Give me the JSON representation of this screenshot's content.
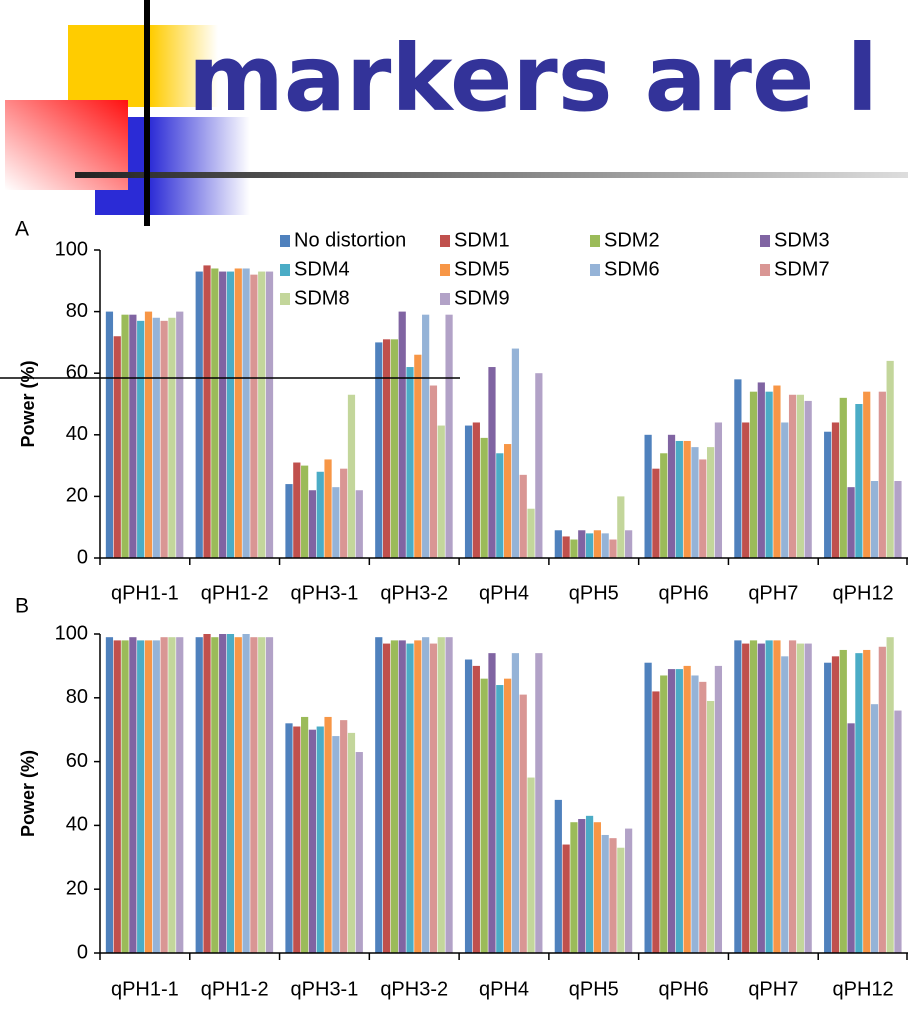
{
  "slide_title": "markers are l",
  "chart_data": [
    {
      "type": "bar",
      "panel_label": "A",
      "y_label": "Power (%)",
      "legend": "top",
      "categories": [
        "qPH1-1",
        "qPH1-2",
        "qPH3-1",
        "qPH3-2",
        "qPH4",
        "qPH5",
        "qPH6",
        "qPH7",
        "qPH12"
      ],
      "ylim": [
        0,
        100
      ],
      "yticks": [
        0,
        20,
        40,
        60,
        80,
        100
      ],
      "series": [
        {
          "name": "No distortion",
          "color": "#4f81bd",
          "values": [
            80,
            93,
            24,
            70,
            43,
            9,
            40,
            58,
            41
          ]
        },
        {
          "name": "SDM1",
          "color": "#c0504d",
          "values": [
            72,
            95,
            31,
            71,
            44,
            7,
            29,
            44,
            44
          ]
        },
        {
          "name": "SDM2",
          "color": "#9bbb59",
          "values": [
            79,
            94,
            30,
            71,
            39,
            6,
            34,
            54,
            52
          ]
        },
        {
          "name": "SDM3",
          "color": "#8064a2",
          "values": [
            79,
            93,
            22,
            80,
            62,
            9,
            40,
            57,
            23
          ]
        },
        {
          "name": "SDM4",
          "color": "#4bacc6",
          "values": [
            77,
            93,
            28,
            62,
            34,
            8,
            38,
            54,
            50
          ]
        },
        {
          "name": "SDM5",
          "color": "#f79646",
          "values": [
            80,
            94,
            32,
            66,
            37,
            9,
            38,
            56,
            54
          ]
        },
        {
          "name": "SDM6",
          "color": "#95b3d7",
          "values": [
            78,
            94,
            23,
            79,
            68,
            8,
            36,
            44,
            25
          ]
        },
        {
          "name": "SDM7",
          "color": "#d99694",
          "values": [
            77,
            92,
            29,
            56,
            27,
            6,
            32,
            53,
            54
          ]
        },
        {
          "name": "SDM8",
          "color": "#c3d69b",
          "values": [
            78,
            93,
            53,
            43,
            16,
            20,
            36,
            53,
            64
          ]
        },
        {
          "name": "SDM9",
          "color": "#b2a2c7",
          "values": [
            80,
            93,
            22,
            79,
            60,
            9,
            44,
            51,
            25
          ]
        }
      ]
    },
    {
      "type": "bar",
      "panel_label": "B",
      "y_label": "Power (%)",
      "categories": [
        "qPH1-1",
        "qPH1-2",
        "qPH3-1",
        "qPH3-2",
        "qPH4",
        "qPH5",
        "qPH6",
        "qPH7",
        "qPH12"
      ],
      "ylim": [
        0,
        100
      ],
      "yticks": [
        0,
        20,
        40,
        60,
        80,
        100
      ],
      "series": [
        {
          "color": "#4f81bd",
          "values": [
            99,
            99,
            72,
            99,
            92,
            48,
            91,
            98,
            91
          ]
        },
        {
          "color": "#c0504d",
          "values": [
            98,
            100,
            71,
            97,
            90,
            34,
            82,
            97,
            93
          ]
        },
        {
          "color": "#9bbb59",
          "values": [
            98,
            99,
            74,
            98,
            86,
            41,
            87,
            98,
            95
          ]
        },
        {
          "color": "#8064a2",
          "values": [
            99,
            100,
            70,
            98,
            94,
            42,
            89,
            97,
            72
          ]
        },
        {
          "color": "#4bacc6",
          "values": [
            98,
            100,
            71,
            97,
            84,
            43,
            89,
            98,
            94
          ]
        },
        {
          "color": "#f79646",
          "values": [
            98,
            99,
            74,
            98,
            86,
            41,
            90,
            98,
            95
          ]
        },
        {
          "color": "#95b3d7",
          "values": [
            98,
            100,
            68,
            99,
            94,
            37,
            87,
            93,
            78
          ]
        },
        {
          "color": "#d99694",
          "values": [
            99,
            99,
            73,
            97,
            81,
            36,
            85,
            98,
            96
          ]
        },
        {
          "color": "#c3d69b",
          "values": [
            99,
            99,
            69,
            99,
            55,
            33,
            79,
            97,
            99
          ]
        },
        {
          "color": "#b2a2c7",
          "values": [
            99,
            99,
            63,
            99,
            94,
            39,
            90,
            97,
            76
          ]
        }
      ]
    }
  ]
}
